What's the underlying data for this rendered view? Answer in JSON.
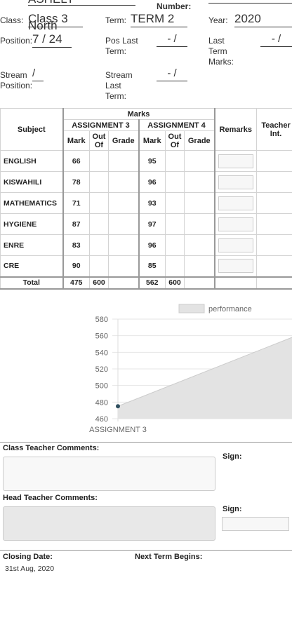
{
  "student": {
    "name": "ASHELY",
    "number_label": "Number:",
    "class_label": "Class:",
    "class_value": "Class 3",
    "class_stream": "North",
    "term_label": "Term:",
    "term_value": "TERM 2",
    "year_label": "Year:",
    "year_value": "2020",
    "position_label": "Position:",
    "position_value": "7 / 24",
    "pos_last_term_label": "Pos Last Term:",
    "pos_last_term_value": "- /",
    "last_term_marks_label": "Last Term Marks:",
    "last_term_marks_value": "- /",
    "stream_position_label": "Stream Position:",
    "stream_position_value": "/",
    "stream_last_term_label": "Stream Last Term:",
    "stream_last_term_value": "- /"
  },
  "table": {
    "subject_header": "Subject",
    "marks_header": "Marks",
    "assignments": [
      "ASSIGNMENT 3",
      "ASSIGNMENT 4"
    ],
    "sub_headers": {
      "mark": "Mark",
      "out_of": "Out Of",
      "grade": "Grade"
    },
    "remarks_header": "Remarks",
    "teacher_header": "Teacher Int.",
    "rows": [
      {
        "subject": "ENGLISH",
        "a3": "66",
        "a4": "95"
      },
      {
        "subject": "KISWAHILI",
        "a3": "78",
        "a4": "96"
      },
      {
        "subject": "MATHEMATICS",
        "a3": "71",
        "a4": "93"
      },
      {
        "subject": "HYGIENE",
        "a3": "87",
        "a4": "97"
      },
      {
        "subject": "ENRE",
        "a3": "83",
        "a4": "96"
      },
      {
        "subject": "CRE",
        "a3": "90",
        "a4": "85"
      }
    ],
    "total": {
      "label": "Total",
      "a3_mark": "475",
      "a3_out": "600",
      "a4_mark": "562",
      "a4_out": "600"
    }
  },
  "chart_data": {
    "type": "area",
    "categories": [
      "ASSIGNMENT 3",
      "ASSIGNMENT 4"
    ],
    "series": [
      {
        "name": "performance",
        "values": [
          475,
          562
        ]
      }
    ],
    "visible_categories": [
      "ASSIGNMENT 3"
    ],
    "ylim": [
      460,
      580
    ],
    "yticks": [
      460,
      480,
      500,
      520,
      540,
      560,
      580
    ],
    "grid": true,
    "legend": "top-right",
    "colors": {
      "fill": "#e3e3e3",
      "line": "#cccccc",
      "point": "#2f4f5f"
    }
  },
  "comments": {
    "class_teacher_label": "Class Teacher Comments:",
    "head_teacher_label": "Head Teacher Comments:",
    "sign_label": "Sign:"
  },
  "footer": {
    "closing_date_label": "Closing Date:",
    "closing_date_value": "31st Aug, 2020",
    "next_term_label": "Next Term Begins:"
  }
}
